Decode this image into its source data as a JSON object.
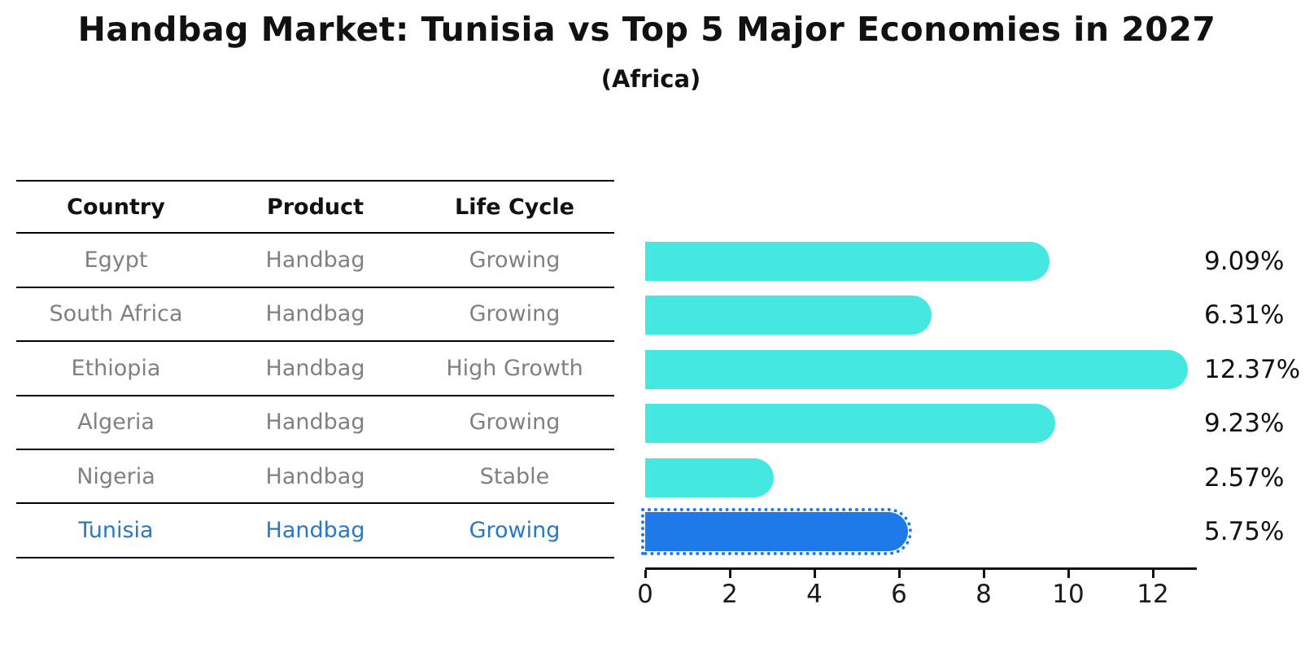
{
  "title": "Handbag Market: Tunisia vs Top 5 Major Economies in 2027",
  "subtitle": "(Africa)",
  "table": {
    "headers": [
      "Country",
      "Product",
      "Life Cycle"
    ],
    "rows": [
      {
        "country": "Egypt",
        "product": "Handbag",
        "life_cycle": "Growing",
        "highlighted": false
      },
      {
        "country": "South Africa",
        "product": "Handbag",
        "life_cycle": "Growing",
        "highlighted": false
      },
      {
        "country": "Ethiopia",
        "product": "Handbag",
        "life_cycle": "High Growth",
        "highlighted": false
      },
      {
        "country": "Algeria",
        "product": "Handbag",
        "life_cycle": "Growing",
        "highlighted": false
      },
      {
        "country": "Nigeria",
        "product": "Handbag",
        "life_cycle": "Stable",
        "highlighted": false
      },
      {
        "country": "Tunisia",
        "product": "Handbag",
        "life_cycle": "Growing",
        "highlighted": true
      }
    ]
  },
  "chart_data": {
    "type": "bar",
    "orientation": "horizontal",
    "title": "Handbag Market: Tunisia vs Top 5 Major Economies in 2027 (Africa)",
    "categories": [
      "Egypt",
      "South Africa",
      "Ethiopia",
      "Algeria",
      "Nigeria",
      "Tunisia"
    ],
    "values": [
      9.09,
      6.31,
      12.37,
      9.23,
      2.57,
      5.75
    ],
    "value_labels": [
      "9.09%",
      "6.31%",
      "12.37%",
      "9.23%",
      "2.57%",
      "5.75%"
    ],
    "x_ticks": [
      0,
      2,
      4,
      6,
      8,
      10,
      12
    ],
    "xlim": [
      0,
      13
    ],
    "xlabel": "",
    "ylabel": "",
    "grid": false,
    "legend": false,
    "highlight_category": "Tunisia",
    "colors": {
      "bar_default": "#45E8E0",
      "bar_highlight": "#1E7AE8",
      "highlight_text": "#2878C8",
      "body_text": "#808080",
      "header_text": "#111111"
    }
  }
}
